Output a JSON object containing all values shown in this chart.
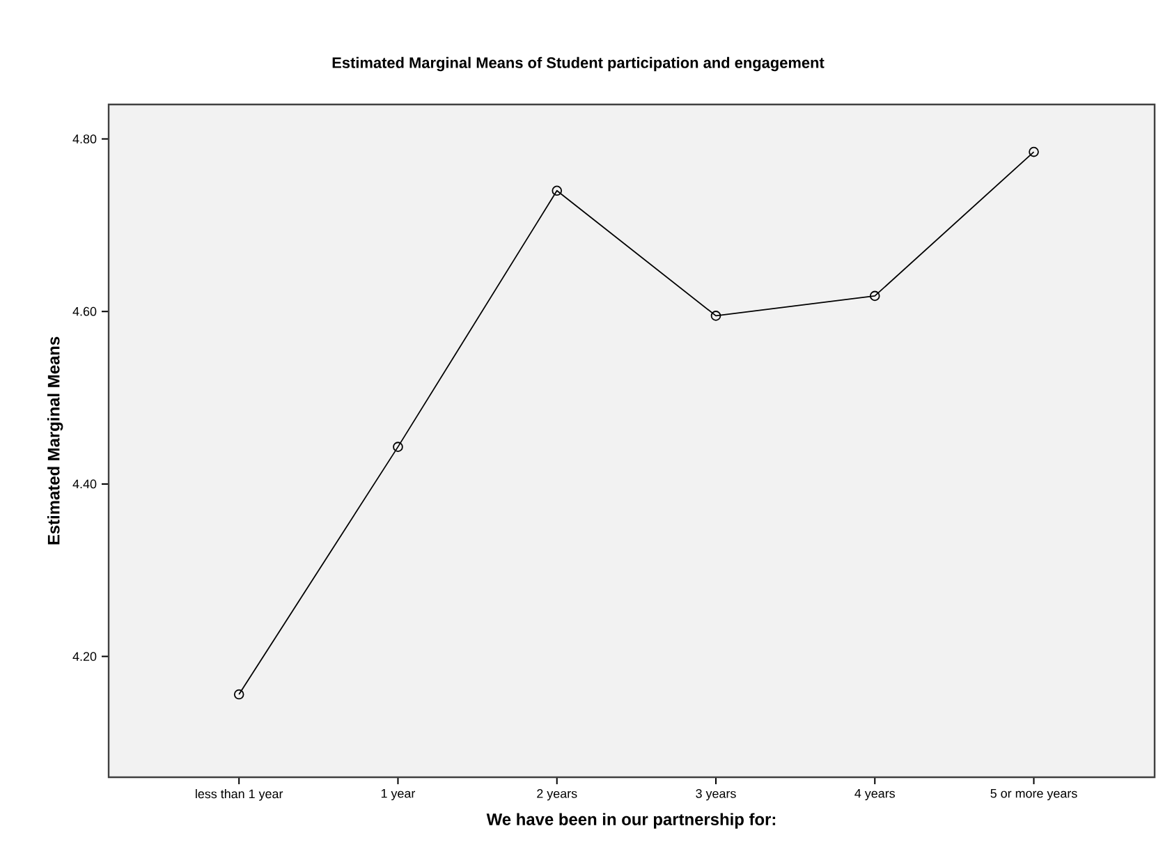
{
  "chart_data": {
    "type": "line",
    "title": "Estimated Marginal Means of Student participation and engagement",
    "xlabel": "We have been in our partnership for:",
    "ylabel": "Estimated Marginal Means",
    "categories": [
      "less than 1 year",
      "1 year",
      "2 years",
      "3 years",
      "4 years",
      "5 or more years"
    ],
    "series": [
      {
        "color": "#000000",
        "values": [
          4.156,
          4.443,
          4.74,
          4.595,
          4.618,
          4.785
        ]
      }
    ],
    "ylim": [
      4.06,
      4.84
    ],
    "yticks": [
      {
        "value": 4.2,
        "label": "4.20"
      },
      {
        "value": 4.4,
        "label": "4.40"
      },
      {
        "value": 4.6,
        "label": "4.60"
      },
      {
        "value": 4.8,
        "label": "4.80"
      }
    ],
    "marker": "circle",
    "line_style": "solid",
    "grid": false,
    "legend": false
  }
}
